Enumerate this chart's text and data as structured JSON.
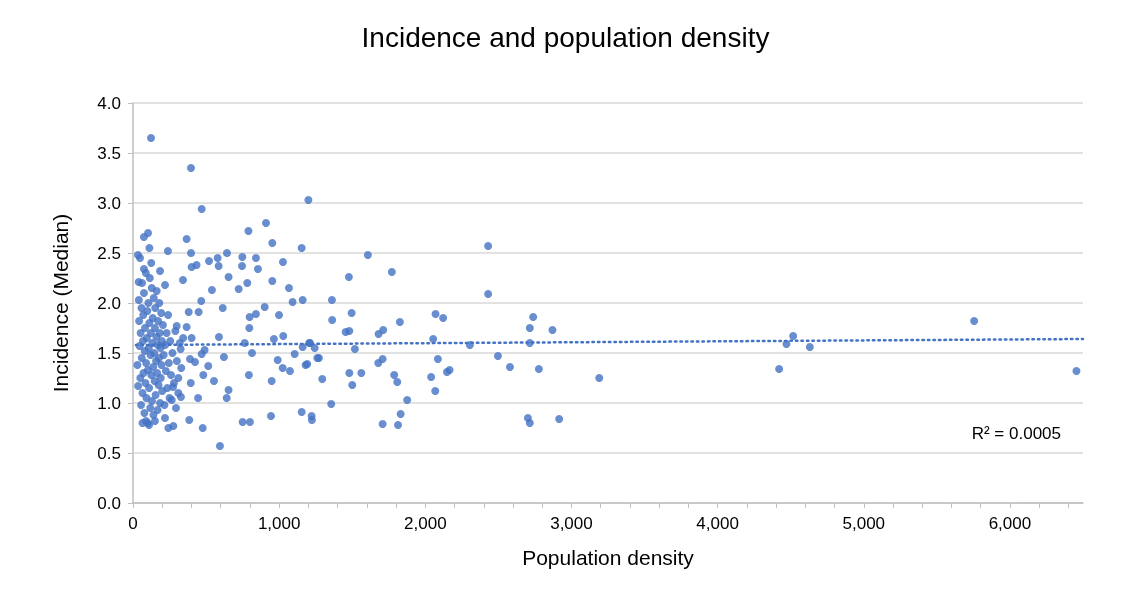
{
  "chart_data": {
    "type": "scatter",
    "title": "Incidence and population density",
    "xlabel": "Population density",
    "ylabel": "Incidence (Median)",
    "annotations": [
      "R² = 0.0005"
    ],
    "xlim": [
      0,
      6500
    ],
    "ylim": [
      0,
      4
    ],
    "xticks": [
      {
        "value": 0,
        "label": "0"
      },
      {
        "value": 200,
        "label": null
      },
      {
        "value": 400,
        "label": null
      },
      {
        "value": 600,
        "label": null
      },
      {
        "value": 800,
        "label": null
      },
      {
        "value": 1000,
        "label": "1,000"
      },
      {
        "value": 1200,
        "label": null
      },
      {
        "value": 1400,
        "label": null
      },
      {
        "value": 1600,
        "label": null
      },
      {
        "value": 1800,
        "label": null
      },
      {
        "value": 2000,
        "label": "2,000"
      },
      {
        "value": 2200,
        "label": null
      },
      {
        "value": 2400,
        "label": null
      },
      {
        "value": 2600,
        "label": null
      },
      {
        "value": 2800,
        "label": null
      },
      {
        "value": 3000,
        "label": "3,000"
      },
      {
        "value": 3200,
        "label": null
      },
      {
        "value": 3400,
        "label": null
      },
      {
        "value": 3600,
        "label": null
      },
      {
        "value": 3800,
        "label": null
      },
      {
        "value": 4000,
        "label": "4,000"
      },
      {
        "value": 4200,
        "label": null
      },
      {
        "value": 4400,
        "label": null
      },
      {
        "value": 4600,
        "label": null
      },
      {
        "value": 4800,
        "label": null
      },
      {
        "value": 5000,
        "label": "5,000"
      },
      {
        "value": 5200,
        "label": null
      },
      {
        "value": 5400,
        "label": null
      },
      {
        "value": 5600,
        "label": null
      },
      {
        "value": 5800,
        "label": null
      },
      {
        "value": 6000,
        "label": "6,000"
      },
      {
        "value": 6200,
        "label": null
      },
      {
        "value": 6400,
        "label": null
      }
    ],
    "yticks": [
      {
        "value": 0,
        "label": "0.0"
      },
      {
        "value": 0.5,
        "label": "0.5"
      },
      {
        "value": 1,
        "label": "1.0"
      },
      {
        "value": 1.5,
        "label": "1.5"
      },
      {
        "value": 2,
        "label": "2.0"
      },
      {
        "value": 2.5,
        "label": "2.5"
      },
      {
        "value": 3,
        "label": "3.0"
      },
      {
        "value": 3.5,
        "label": "3.5"
      },
      {
        "value": 4,
        "label": "4.0"
      }
    ],
    "grid": "y",
    "marker": "circle",
    "series": [
      {
        "color": "#4472c4",
        "x": [
          123,
          397,
          470,
          1200,
          910,
          790,
          103,
          75,
          367,
          953,
          112,
          239,
          1154,
          34,
          397,
          643,
          520,
          579,
          748,
          841,
          1026,
          125,
          401,
          435,
          586,
          746,
          185,
          855,
          75,
          342,
          654,
          953,
          782,
          219,
          1067,
          540,
          723,
          39,
          595,
          477,
          385,
          750,
          800,
          944,
          1154,
          1222,
          89,
          242,
          276,
          445,
          641,
          654,
          793,
          949,
          554,
          622,
          814,
          990,
          1024,
          1074,
          1106,
          1181,
          1261,
          588,
          764,
          796,
          798,
          841,
          999,
          901,
          614,
          1092,
          1161,
          381,
          449,
          467,
          1028,
          964,
          1206,
          1161,
          490,
          470,
          390,
          424,
          515,
          481,
          395,
          328,
          294,
          219,
          299,
          367,
          343,
          401,
          326,
          310,
          274,
          265,
          1607,
          1477,
          1771,
          1361,
          1363,
          1496,
          1455,
          1480,
          1518,
          1211,
          1243,
          1272,
          1192,
          1295,
          1356,
          1480,
          1562,
          1500,
          1224,
          1708,
          1813,
          1831,
          1876,
          1787,
          1808,
          1678,
          1708,
          1680,
          1712,
          1826,
          2040,
          2068,
          2086,
          2148,
          2166,
          2054,
          2070,
          2122,
          2305,
          2430,
          2430,
          2497,
          2579,
          2702,
          2715,
          2715,
          2738,
          2715,
          2777,
          2870,
          2916,
          3190,
          4421,
          4471,
          4517,
          4631,
          5755,
          6455,
          30,
          35,
          40,
          42,
          45,
          48,
          50,
          52,
          55,
          58,
          60,
          62,
          65,
          68,
          70,
          72,
          75,
          78,
          80,
          82,
          85,
          88,
          90,
          92,
          95,
          98,
          100,
          102,
          105,
          108,
          110,
          112,
          115,
          118,
          120,
          122,
          125,
          128,
          130,
          132,
          135,
          138,
          140,
          142,
          145,
          148,
          150,
          152,
          155,
          158,
          160,
          162,
          165,
          168,
          170,
          172,
          175,
          178,
          180,
          183,
          185,
          188,
          190,
          193,
          195,
          198,
          200,
          205,
          210,
          215,
          220,
          225,
          230,
          235,
          240,
          245,
          250,
          255,
          260,
          270,
          280,
          290,
          300,
          310,
          320,
          330,
          65,
          110,
          150
        ],
        "values": [
          3.65,
          3.35,
          2.94,
          3.03,
          2.8,
          2.72,
          2.7,
          2.66,
          2.64,
          2.6,
          2.55,
          2.52,
          2.55,
          2.48,
          2.5,
          2.5,
          2.42,
          2.45,
          2.46,
          2.45,
          2.41,
          2.4,
          2.36,
          2.38,
          2.37,
          2.37,
          2.32,
          2.34,
          2.34,
          2.23,
          2.26,
          2.22,
          2.2,
          2.18,
          2.15,
          2.13,
          2.14,
          2.21,
          0.57,
          0.75,
          0.83,
          0.81,
          0.81,
          0.87,
          0.91,
          0.87,
          0.82,
          0.75,
          0.77,
          1.05,
          1.05,
          1.13,
          1.28,
          1.22,
          1.22,
          1.46,
          1.5,
          1.43,
          1.35,
          1.32,
          1.49,
          1.38,
          1.45,
          1.66,
          1.6,
          1.75,
          1.86,
          1.89,
          1.88,
          1.96,
          1.95,
          2.01,
          2.03,
          1.91,
          1.91,
          2.02,
          1.67,
          1.64,
          1.6,
          1.56,
          1.53,
          1.49,
          1.44,
          1.41,
          1.37,
          1.28,
          1.2,
          1.06,
          0.95,
          0.85,
          1.77,
          1.76,
          1.65,
          1.65,
          1.54,
          1.25,
          1.16,
          1.03,
          2.48,
          2.26,
          2.31,
          2.03,
          1.83,
          1.9,
          1.71,
          1.72,
          1.54,
          1.6,
          1.55,
          1.45,
          1.39,
          1.24,
          0.99,
          1.3,
          1.3,
          1.18,
          0.83,
          0.79,
          0.78,
          0.89,
          1.03,
          1.28,
          1.21,
          1.4,
          1.44,
          1.69,
          1.73,
          1.81,
          1.26,
          1.12,
          1.44,
          1.31,
          1.33,
          1.64,
          1.89,
          1.85,
          1.58,
          2.57,
          2.09,
          1.47,
          1.36,
          0.85,
          0.8,
          1.75,
          1.86,
          1.6,
          1.34,
          1.73,
          0.84,
          1.25,
          1.34,
          1.59,
          1.67,
          1.56,
          1.82,
          1.32,
          1.38,
          1.17,
          2.03,
          1.82,
          1.57,
          2.45,
          1.25,
          1.7,
          0.98,
          1.95,
          1.45,
          2.2,
          1.1,
          1.62,
          1.88,
          1.3,
          2.1,
          0.9,
          1.52,
          1.75,
          1.2,
          2.3,
          1.4,
          1.05,
          1.65,
          1.92,
          0.8,
          1.33,
          2.0,
          1.55,
          1.15,
          1.8,
          2.25,
          0.95,
          1.48,
          1.7,
          1.28,
          2.15,
          1.02,
          1.6,
          1.85,
          1.36,
          0.88,
          2.05,
          1.5,
          1.22,
          1.75,
          1.95,
          1.08,
          1.42,
          1.66,
          2.12,
          1.3,
          0.93,
          1.58,
          1.82,
          1.18,
          1.45,
          2.0,
          1.7,
          1.0,
          1.55,
          1.25,
          1.9,
          1.38,
          1.62,
          1.12,
          1.78,
          1.48,
          0.98,
          1.58,
          1.32,
          1.7,
          1.15,
          1.88,
          1.4,
          1.05,
          1.62,
          1.28,
          1.5,
          1.2,
          1.72,
          1.42,
          1.1,
          1.6,
          1.35,
          0.8,
          0.78,
          0.82
        ]
      },
      {
        "type": "line",
        "color": "#4472c4",
        "marker": "none",
        "line_style": "dotted",
        "x": [
          20,
          6500
        ],
        "values": [
          1.58,
          1.64
        ]
      }
    ]
  }
}
